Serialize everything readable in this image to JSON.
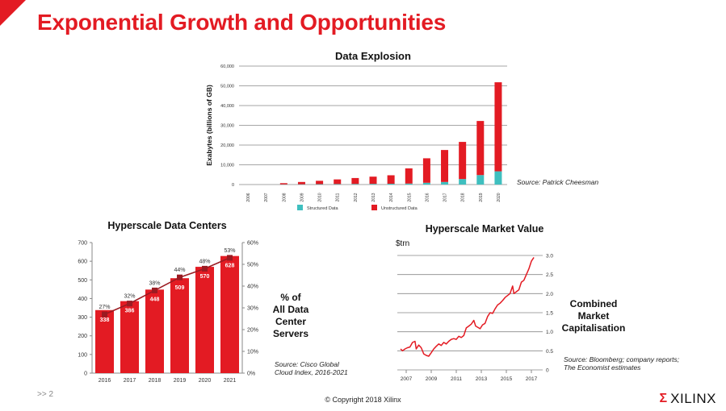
{
  "slide": {
    "title": "Exponential Growth and Opportunities",
    "page_label": ">> 2",
    "copyright": "© Copyright 2018 Xilinx",
    "logo_text": "XILINX",
    "accent_color": "#e31b23"
  },
  "chart_data": [
    {
      "id": "data-explosion",
      "type": "bar",
      "stacked": true,
      "title": "Data Explosion",
      "xlabel": "",
      "ylabel": "Exabytes (billions of GB)",
      "ylim": [
        0,
        60000
      ],
      "yticks": [
        "0",
        "10,000",
        "20,000",
        "30,000",
        "40,000",
        "50,000",
        "60,000"
      ],
      "grid": true,
      "legend_position": "bottom",
      "categories": [
        "2006",
        "2007",
        "2008",
        "2009",
        "2010",
        "2011",
        "2012",
        "2013",
        "2014",
        "2015",
        "2016",
        "2017",
        "2018",
        "2019",
        "2020"
      ],
      "series": [
        {
          "name": "Structured Data",
          "color": "#3fbfbf",
          "values": [
            0,
            0,
            100,
            150,
            200,
            250,
            300,
            350,
            400,
            500,
            900,
            1300,
            2800,
            4800,
            6700
          ]
        },
        {
          "name": "Unstructured Data",
          "color": "#e31b23",
          "values": [
            0,
            0,
            600,
            1150,
            1700,
            2350,
            3000,
            3650,
            4300,
            7700,
            12400,
            16200,
            18800,
            27400,
            45100
          ]
        }
      ],
      "source": "Source: Patrick Cheesman"
    },
    {
      "id": "hyperscale-data-centers",
      "type": "bar",
      "title": "Hyperscale Data Centers",
      "xlabel": "",
      "ylabel": "",
      "ylim": [
        0,
        700
      ],
      "yticks": [
        "0",
        "100",
        "200",
        "300",
        "400",
        "500",
        "600",
        "700"
      ],
      "y2lim": [
        0,
        60
      ],
      "y2ticks": [
        "0%",
        "10%",
        "20%",
        "30%",
        "40%",
        "50%",
        "60%"
      ],
      "categories": [
        "2016",
        "2017",
        "2018",
        "2019",
        "2020",
        "2021"
      ],
      "series": [
        {
          "name": "Hyperscale Data Centers",
          "type": "bar",
          "color": "#e31b23",
          "values": [
            338,
            386,
            448,
            509,
            570,
            628
          ],
          "labels": [
            "338",
            "386",
            "448",
            "509",
            "570",
            "628"
          ]
        },
        {
          "name": "% of All Data Center Servers",
          "type": "line",
          "axis": "right",
          "color": "#9b1b22",
          "values": [
            27,
            32,
            38,
            44,
            48,
            53
          ],
          "labels": [
            "27%",
            "32%",
            "38%",
            "44%",
            "48%",
            "53%"
          ]
        }
      ],
      "side_note": [
        "% of",
        "All Data",
        "Center",
        "Servers"
      ],
      "source": [
        "Source: Cisco Global",
        "Cloud Index, 2016-2021"
      ]
    },
    {
      "id": "hyperscale-market-value",
      "type": "line",
      "title": "Hyperscale Market Value",
      "unit_label": "$trn",
      "xlabel": "",
      "ylabel": "",
      "ylim": [
        0,
        3.0
      ],
      "yticks": [
        "0",
        "0.5",
        "1.0",
        "1.5",
        "2.0",
        "2.5",
        "3.0"
      ],
      "xlim": [
        2006.5,
        2017.3
      ],
      "xticks": [
        "2007",
        "2009",
        "2011",
        "2013",
        "2015",
        "2017"
      ],
      "grid": true,
      "series": [
        {
          "name": "Combined Market Capitalisation",
          "color": "#e31b23",
          "x": [
            2006.55,
            2006.7,
            2006.9,
            2007.1,
            2007.3,
            2007.5,
            2007.7,
            2007.8,
            2008.0,
            2008.2,
            2008.4,
            2008.6,
            2008.8,
            2009.0,
            2009.2,
            2009.4,
            2009.6,
            2009.8,
            2010.0,
            2010.2,
            2010.4,
            2010.6,
            2010.8,
            2011.0,
            2011.2,
            2011.4,
            2011.6,
            2011.8,
            2012.0,
            2012.2,
            2012.4,
            2012.55,
            2012.7,
            2012.9,
            2013.1,
            2013.3,
            2013.5,
            2013.7,
            2013.9,
            2014.1,
            2014.3,
            2014.5,
            2014.7,
            2014.9,
            2015.1,
            2015.3,
            2015.5,
            2015.6,
            2015.8,
            2016.0,
            2016.2,
            2016.4,
            2016.6,
            2016.8,
            2017.0,
            2017.2
          ],
          "y": [
            0.55,
            0.5,
            0.55,
            0.58,
            0.6,
            0.72,
            0.75,
            0.55,
            0.65,
            0.58,
            0.42,
            0.38,
            0.36,
            0.45,
            0.55,
            0.62,
            0.68,
            0.64,
            0.72,
            0.68,
            0.75,
            0.8,
            0.82,
            0.8,
            0.88,
            0.85,
            0.9,
            1.1,
            1.15,
            1.2,
            1.3,
            1.15,
            1.12,
            1.08,
            1.18,
            1.22,
            1.4,
            1.5,
            1.48,
            1.6,
            1.7,
            1.75,
            1.82,
            1.9,
            1.95,
            2.0,
            2.2,
            2.0,
            2.05,
            2.1,
            2.3,
            2.35,
            2.5,
            2.65,
            2.85,
            2.95
          ]
        }
      ],
      "side_note": [
        "Combined",
        "Market",
        "Capitalisation"
      ],
      "source": [
        "Source: Bloomberg; company reports;",
        "The Economist estimates"
      ]
    }
  ]
}
